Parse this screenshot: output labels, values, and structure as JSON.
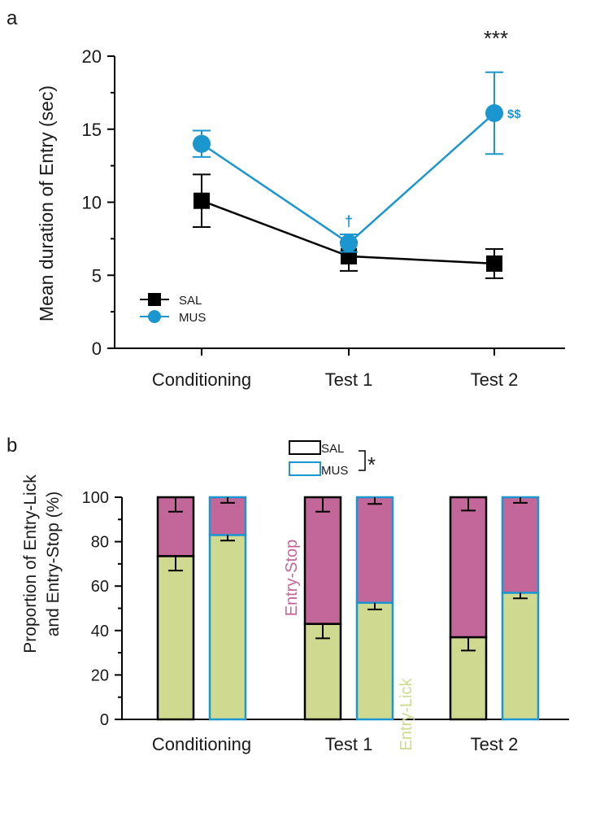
{
  "colors": {
    "sal": "#000000",
    "mus": "#1b96cf",
    "lick": "#cfd990",
    "stop": "#c3679a",
    "stop_text": "#c3679a",
    "lick_text": "#cfd990"
  },
  "chart_data": [
    {
      "panel_label": "a",
      "type": "line",
      "title": "",
      "xlabel": "",
      "ylabel": "Mean duration of Entry (sec)",
      "categories": [
        "Conditioning",
        "Test 1",
        "Test 2"
      ],
      "ylim": [
        0,
        20
      ],
      "yticks": [
        "0",
        "5",
        "10",
        "15",
        "20"
      ],
      "grid": false,
      "legend_position": "bottom-left",
      "series": [
        {
          "name": "SAL",
          "values": [
            10.1,
            6.3,
            5.8
          ],
          "errors": [
            1.8,
            1.0,
            1.0
          ],
          "marker": "square"
        },
        {
          "name": "MUS",
          "values": [
            14.0,
            7.2,
            16.1
          ],
          "errors": [
            0.9,
            0.6,
            2.8
          ],
          "marker": "circle"
        }
      ],
      "annotations": {
        "significance_test2": "***",
        "mus_test1": "†",
        "mus_test2": "$$"
      }
    },
    {
      "panel_label": "b",
      "type": "bar",
      "stacked": true,
      "title": "",
      "xlabel": "",
      "ylabel": "Proportion of Entry-Lick and Entry-Stop (%)",
      "ylabel_line1": "Proportion of Entry-Lick",
      "ylabel_line2": "and Entry-Stop (%)",
      "categories": [
        "Conditioning",
        "Test 1",
        "Test 2"
      ],
      "ylim": [
        0,
        100
      ],
      "yticks": [
        "0",
        "20",
        "40",
        "60",
        "80",
        "100"
      ],
      "grid": false,
      "legend_position": "top-center",
      "legend": [
        "SAL",
        "MUS"
      ],
      "legend_significance": "*",
      "segment_labels": {
        "stop": "Entry-Stop",
        "lick": "Entry-Lick"
      },
      "series": [
        {
          "name": "SAL",
          "entry_lick": [
            73.5,
            43.0,
            37.0
          ],
          "entry_lick_err": [
            6.5,
            6.5,
            6.0
          ],
          "entry_stop_err": [
            6.5,
            6.5,
            6.0
          ]
        },
        {
          "name": "MUS",
          "entry_lick": [
            83.0,
            52.5,
            57.0
          ],
          "entry_lick_err": [
            2.5,
            3.0,
            2.5
          ],
          "entry_stop_err": [
            2.5,
            3.0,
            2.5
          ]
        }
      ]
    }
  ]
}
